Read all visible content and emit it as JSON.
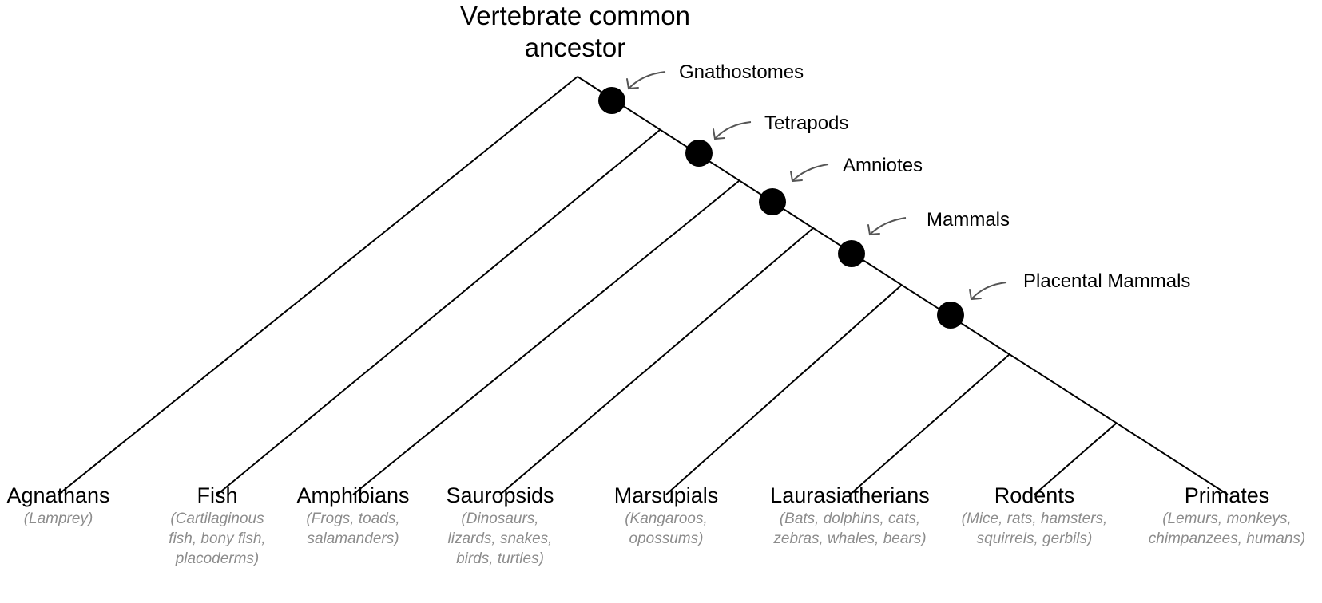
{
  "root": {
    "line1": "Vertebrate common",
    "line2": "ancestor"
  },
  "clades": [
    {
      "name": "Gnathostomes"
    },
    {
      "name": "Tetrapods"
    },
    {
      "name": "Amniotes"
    },
    {
      "name": "Mammals"
    },
    {
      "name": "Placental Mammals"
    }
  ],
  "taxa": [
    {
      "name": "Agnathans",
      "examples": [
        "(Lamprey)"
      ]
    },
    {
      "name": "Fish",
      "examples": [
        "(Cartilaginous",
        "fish, bony fish,",
        "placoderms)"
      ]
    },
    {
      "name": "Amphibians",
      "examples": [
        "(Frogs, toads,",
        "salamanders)"
      ]
    },
    {
      "name": "Sauropsids",
      "examples": [
        "(Dinosaurs,",
        "lizards, snakes,",
        "birds, turtles)"
      ]
    },
    {
      "name": "Marsupials",
      "examples": [
        "(Kangaroos,",
        "opossums)"
      ]
    },
    {
      "name": "Laurasiatherians",
      "examples": [
        "(Bats, dolphins, cats,",
        "zebras, whales, bears)"
      ]
    },
    {
      "name": "Rodents",
      "examples": [
        "(Mice, rats, hamsters,",
        "squirrels, gerbils)"
      ]
    },
    {
      "name": "Primates",
      "examples": [
        "(Lemurs, monkeys,",
        "chimpanzees, humans)"
      ]
    }
  ],
  "colors": {
    "line": "#000000",
    "node": "#000000",
    "arrow": "#555555",
    "example_text": "#8c8c8c"
  }
}
